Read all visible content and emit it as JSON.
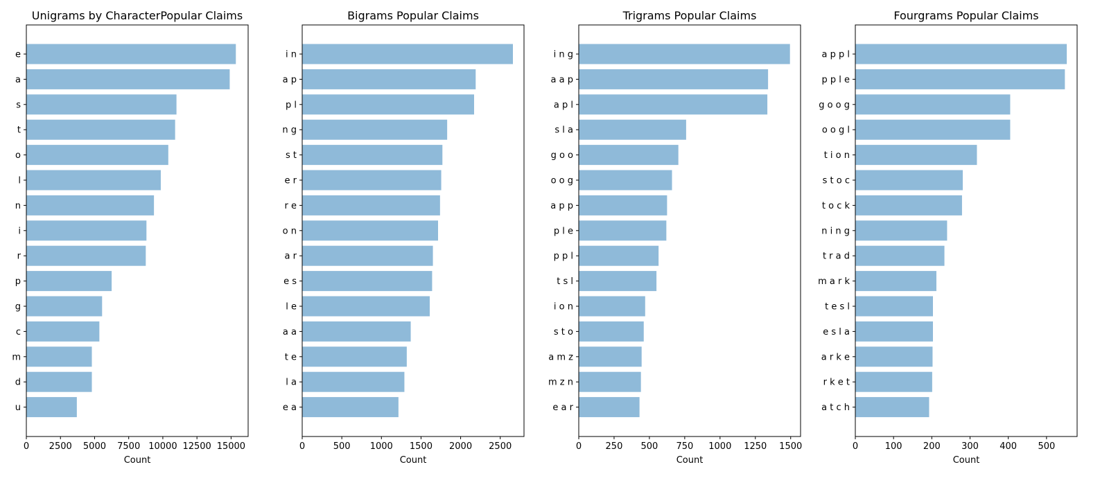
{
  "chart_data": [
    {
      "type": "bar",
      "orientation": "horizontal",
      "title": "Unigrams by CharacterPopular Claims",
      "xlabel": "Count",
      "ylabel": "",
      "xlim": [
        0,
        16250
      ],
      "xticks": [
        0,
        2500,
        5000,
        7500,
        10000,
        12500,
        15000
      ],
      "categories": [
        "e",
        "a",
        "s",
        "t",
        "o",
        "l",
        "n",
        "i",
        "r",
        "p",
        "g",
        "c",
        "m",
        "d",
        "u"
      ],
      "values": [
        15350,
        14900,
        11000,
        10900,
        10400,
        9850,
        9350,
        8800,
        8750,
        6250,
        5550,
        5350,
        4800,
        4800,
        3700
      ],
      "color": "#8fbad9",
      "grid": false
    },
    {
      "type": "bar",
      "orientation": "horizontal",
      "title": "Bigrams Popular Claims",
      "xlabel": "Count",
      "ylabel": "",
      "xlim": [
        0,
        2800
      ],
      "xticks": [
        0,
        500,
        1000,
        1500,
        2000,
        2500
      ],
      "categories": [
        "i n",
        "a p",
        "p l",
        "n g",
        "s t",
        "e r",
        "r e",
        "o n",
        "a r",
        "e s",
        "l e",
        "a a",
        "t e",
        "l a",
        "e a"
      ],
      "values": [
        2660,
        2190,
        2170,
        1830,
        1770,
        1755,
        1740,
        1715,
        1650,
        1640,
        1610,
        1370,
        1320,
        1290,
        1215
      ],
      "color": "#8fbad9",
      "grid": false
    },
    {
      "type": "bar",
      "orientation": "horizontal",
      "title": "Trigrams Popular Claims",
      "xlabel": "Count",
      "ylabel": "",
      "xlim": [
        0,
        1570
      ],
      "xticks": [
        0,
        250,
        500,
        750,
        1000,
        1250,
        1500
      ],
      "categories": [
        "i n g",
        "a a p",
        "a p l",
        "s l a",
        "g o o",
        "o o g",
        "a p p",
        "p l e",
        "p p l",
        "t s l",
        "i o n",
        "s t o",
        "a m z",
        "m z n",
        "e a r"
      ],
      "values": [
        1495,
        1340,
        1335,
        760,
        705,
        660,
        625,
        620,
        565,
        550,
        470,
        460,
        445,
        440,
        430
      ],
      "color": "#8fbad9",
      "grid": false
    },
    {
      "type": "bar",
      "orientation": "horizontal",
      "title": "Fourgrams Popular Claims",
      "xlabel": "Count",
      "ylabel": "",
      "xlim": [
        0,
        580
      ],
      "xticks": [
        0,
        100,
        200,
        300,
        400,
        500
      ],
      "categories": [
        "a p p l",
        "p p l e",
        "g o o g",
        "o o g l",
        "t i o n",
        "s t o c",
        "t o c k",
        "n i n g",
        "t r a d",
        "m a r k",
        "t e s l",
        "e s l a",
        "a r k e",
        "r k e t",
        "a t c h"
      ],
      "values": [
        553,
        548,
        405,
        405,
        318,
        281,
        279,
        240,
        233,
        212,
        203,
        203,
        202,
        201,
        193
      ],
      "color": "#8fbad9",
      "grid": false
    }
  ]
}
